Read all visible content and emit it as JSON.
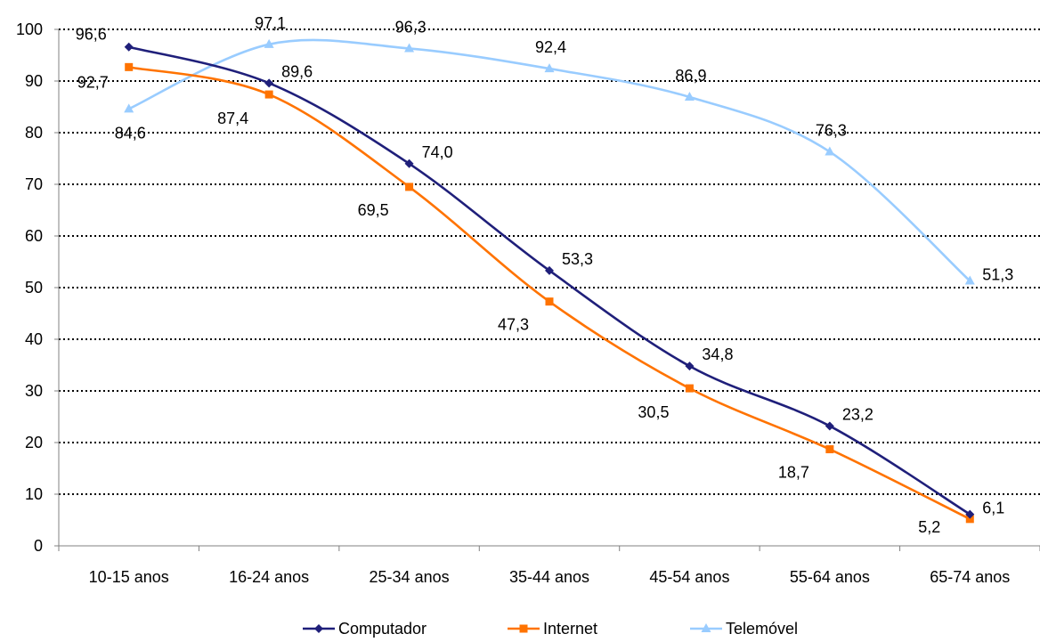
{
  "chart_data": {
    "type": "line",
    "title": "",
    "xlabel": "",
    "ylabel": "",
    "categories": [
      "10-15 anos",
      "16-24 anos",
      "25-34 anos",
      "35-44 anos",
      "45-54 anos",
      "55-64 anos",
      "65-74 anos"
    ],
    "ylim": [
      0,
      100
    ],
    "yticks": [
      0,
      10,
      20,
      30,
      40,
      50,
      60,
      70,
      80,
      90,
      100
    ],
    "grid": "horizontal dotted",
    "legend_position": "bottom",
    "series": [
      {
        "name": "Computador",
        "color": "#1f1f7a",
        "marker": "diamond",
        "values": [
          96.6,
          89.6,
          74.0,
          53.3,
          34.8,
          23.2,
          6.1
        ],
        "labels": [
          "96,6",
          "89,6",
          "74,0",
          "53,3",
          "34,8",
          "23,2",
          "6,1"
        ]
      },
      {
        "name": "Internet",
        "color": "#ff7300",
        "marker": "square",
        "values": [
          92.7,
          87.4,
          69.5,
          47.3,
          30.5,
          18.7,
          5.2
        ],
        "labels": [
          "92,7",
          "87,4",
          "69,5",
          "47,3",
          "30,5",
          "18,7",
          "5,2"
        ]
      },
      {
        "name": "Telemóvel",
        "color": "#99ccff",
        "marker": "triangle",
        "values": [
          84.6,
          97.1,
          96.3,
          92.4,
          86.9,
          76.3,
          51.3
        ],
        "labels": [
          "84,6",
          "97,1",
          "96,3",
          "92,4",
          "86,9",
          "76,3",
          "51,3"
        ]
      }
    ]
  }
}
